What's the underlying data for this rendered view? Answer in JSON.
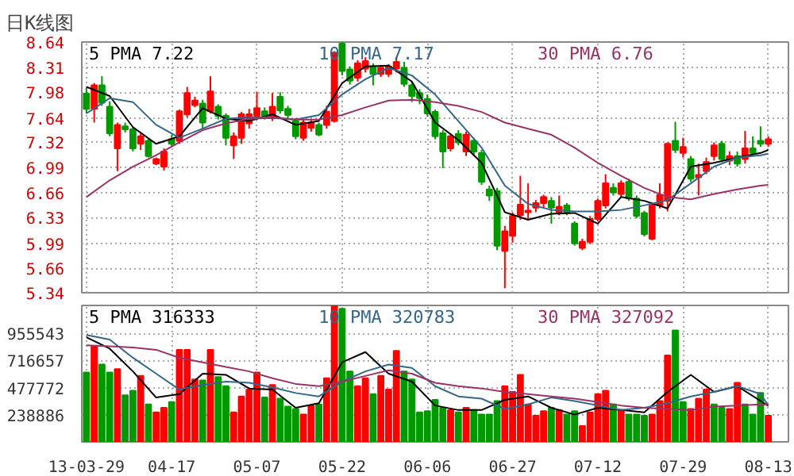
{
  "chart_data": [
    {
      "type": "candlestick",
      "title": "日K线图",
      "categories": [
        null,
        null,
        null,
        null,
        null,
        null,
        null,
        null,
        null,
        null,
        null,
        null,
        null,
        null,
        null,
        null,
        null,
        null,
        null,
        null,
        null,
        null,
        null,
        null,
        null,
        null,
        null,
        null,
        null,
        null,
        null,
        null,
        null,
        null,
        null,
        null,
        null,
        null,
        null,
        null,
        null,
        null,
        null,
        null,
        null,
        null,
        null,
        null,
        null,
        null,
        null,
        null,
        null,
        null,
        null,
        null,
        null,
        null,
        null,
        null,
        null,
        null,
        null,
        null,
        null,
        null,
        null,
        null,
        null,
        null,
        null,
        null,
        null,
        null,
        null,
        null,
        null,
        null,
        null,
        null,
        null,
        null,
        null,
        null,
        null,
        null,
        null,
        null,
        null
      ],
      "ohlc": [
        [
          7.96,
          8.04,
          7.7,
          7.76
        ],
        [
          7.76,
          8.1,
          7.58,
          8.07
        ],
        [
          8.07,
          8.19,
          7.8,
          7.84
        ],
        [
          7.79,
          7.86,
          7.4,
          7.44
        ],
        [
          7.24,
          7.58,
          6.94,
          7.55
        ],
        [
          7.53,
          7.58,
          7.45,
          7.49
        ],
        [
          7.49,
          7.52,
          7.2,
          7.24
        ],
        [
          7.3,
          7.45,
          7.22,
          7.4
        ],
        [
          7.34,
          7.37,
          7.12,
          7.14
        ],
        [
          7.04,
          7.12,
          7.02,
          7.1
        ],
        [
          7.0,
          7.24,
          6.95,
          7.2
        ],
        [
          7.36,
          7.42,
          7.26,
          7.3
        ],
        [
          7.34,
          7.75,
          7.3,
          7.73
        ],
        [
          7.69,
          8.05,
          7.65,
          7.97
        ],
        [
          7.81,
          7.92,
          7.78,
          7.87
        ],
        [
          7.83,
          7.88,
          7.5,
          7.58
        ],
        [
          7.73,
          8.19,
          7.7,
          7.99
        ],
        [
          7.79,
          7.82,
          7.62,
          7.67
        ],
        [
          7.67,
          7.7,
          7.28,
          7.38
        ],
        [
          7.28,
          7.45,
          7.1,
          7.4
        ],
        [
          7.38,
          7.72,
          7.3,
          7.69
        ],
        [
          7.57,
          7.76,
          7.5,
          7.69
        ],
        [
          7.67,
          7.98,
          7.62,
          7.77
        ],
        [
          7.73,
          7.78,
          7.62,
          7.67
        ],
        [
          7.65,
          7.97,
          7.6,
          7.79
        ],
        [
          7.92,
          7.98,
          7.7,
          7.74
        ],
        [
          7.76,
          7.8,
          7.62,
          7.68
        ],
        [
          7.6,
          7.64,
          7.36,
          7.4
        ],
        [
          7.38,
          7.62,
          7.34,
          7.58
        ],
        [
          7.51,
          7.62,
          7.46,
          7.58
        ],
        [
          7.55,
          7.58,
          7.4,
          7.42
        ],
        [
          7.55,
          7.8,
          7.5,
          7.72
        ],
        [
          7.6,
          8.52,
          7.58,
          8.5
        ],
        [
          8.62,
          8.64,
          8.2,
          8.26
        ],
        [
          8.28,
          8.32,
          8.08,
          8.13
        ],
        [
          8.17,
          8.4,
          8.12,
          8.36
        ],
        [
          8.29,
          8.44,
          8.24,
          8.39
        ],
        [
          8.32,
          8.36,
          8.07,
          8.22
        ],
        [
          8.22,
          8.34,
          8.18,
          8.3
        ],
        [
          8.22,
          8.35,
          8.18,
          8.32
        ],
        [
          8.29,
          8.44,
          8.24,
          8.38
        ],
        [
          8.3,
          8.38,
          8.05,
          8.09
        ],
        [
          8.07,
          8.12,
          7.85,
          7.93
        ],
        [
          7.97,
          8.02,
          7.82,
          7.9
        ],
        [
          7.89,
          7.95,
          7.66,
          7.7
        ],
        [
          7.72,
          7.75,
          7.36,
          7.4
        ],
        [
          7.44,
          7.48,
          6.98,
          7.2
        ],
        [
          7.24,
          7.44,
          7.2,
          7.4
        ],
        [
          7.43,
          7.48,
          7.28,
          7.32
        ],
        [
          7.2,
          7.46,
          7.14,
          7.42
        ],
        [
          7.34,
          7.38,
          7.16,
          7.2
        ],
        [
          7.18,
          7.22,
          6.76,
          6.8
        ],
        [
          6.7,
          6.75,
          6.55,
          6.62
        ],
        [
          6.68,
          6.72,
          5.9,
          5.96
        ],
        [
          5.89,
          6.22,
          5.4,
          6.15
        ],
        [
          6.09,
          6.4,
          6.0,
          6.35
        ],
        [
          6.36,
          6.88,
          6.3,
          6.5
        ],
        [
          6.4,
          6.78,
          6.29,
          6.42
        ],
        [
          6.46,
          6.56,
          6.4,
          6.52
        ],
        [
          6.52,
          6.63,
          6.45,
          6.6
        ],
        [
          6.55,
          6.6,
          6.25,
          6.46
        ],
        [
          6.4,
          6.62,
          6.36,
          6.47
        ],
        [
          6.49,
          6.52,
          6.36,
          6.4
        ],
        [
          6.25,
          6.28,
          5.96,
          5.99
        ],
        [
          5.93,
          6.05,
          5.9,
          6.01
        ],
        [
          6.01,
          6.35,
          5.98,
          6.31
        ],
        [
          6.31,
          6.58,
          6.28,
          6.55
        ],
        [
          6.49,
          6.9,
          6.45,
          6.78
        ],
        [
          6.72,
          6.78,
          6.62,
          6.66
        ],
        [
          6.64,
          6.82,
          6.6,
          6.78
        ],
        [
          6.8,
          6.84,
          6.55,
          6.58
        ],
        [
          6.58,
          6.62,
          6.32,
          6.35
        ],
        [
          6.39,
          6.42,
          6.08,
          6.11
        ],
        [
          6.05,
          6.52,
          6.03,
          6.49
        ],
        [
          6.49,
          6.78,
          6.45,
          6.63
        ],
        [
          6.55,
          7.32,
          6.41,
          7.3
        ],
        [
          7.34,
          7.59,
          7.18,
          7.22
        ],
        [
          7.18,
          7.38,
          7.12,
          7.26
        ],
        [
          7.1,
          7.14,
          6.8,
          6.84
        ],
        [
          6.86,
          7.04,
          6.62,
          6.89
        ],
        [
          6.94,
          7.12,
          6.9,
          7.06
        ],
        [
          7.14,
          7.32,
          7.08,
          7.28
        ],
        [
          7.3,
          7.34,
          7.06,
          7.1
        ],
        [
          7.08,
          7.2,
          7.02,
          7.14
        ],
        [
          7.14,
          7.2,
          7.0,
          7.04
        ],
        [
          7.1,
          7.47,
          7.04,
          7.24
        ],
        [
          7.24,
          7.4,
          7.14,
          7.18
        ],
        [
          7.34,
          7.53,
          7.26,
          7.3
        ],
        [
          7.3,
          7.4,
          7.26,
          7.36
        ]
      ],
      "series": [
        {
          "type": "line",
          "name": "5 PMA 7.22",
          "color": "#000000",
          "values": [
            8.05,
            null,
            null,
            7.93,
            null,
            null,
            7.52,
            null,
            null,
            7.3,
            null,
            null,
            7.4,
            null,
            null,
            7.77,
            null,
            null,
            7.63,
            null,
            null,
            7.6,
            null,
            null,
            7.69,
            null,
            null,
            7.55,
            null,
            null,
            7.6,
            null,
            null,
            8.1,
            null,
            null,
            8.32,
            null,
            null,
            8.33,
            null,
            null,
            8.12,
            null,
            null,
            7.58,
            null,
            null,
            7.35,
            null,
            null,
            7.05,
            null,
            null,
            6.4,
            null,
            null,
            6.3,
            null,
            null,
            6.38,
            null,
            null,
            6.39,
            null,
            null,
            6.25,
            null,
            null,
            6.6,
            null,
            null,
            6.55,
            null,
            null,
            6.45,
            null,
            null,
            7.0,
            null,
            null,
            7.05,
            null,
            null,
            7.12,
            null,
            null,
            7.18,
            7.22
          ]
        },
        {
          "type": "line",
          "name": "10 PMA 7.17",
          "color": "#336688",
          "values": [
            7.7,
            null,
            null,
            7.9,
            null,
            null,
            7.85,
            null,
            null,
            7.55,
            null,
            null,
            7.38,
            null,
            null,
            7.5,
            null,
            null,
            7.63,
            null,
            null,
            7.65,
            null,
            null,
            7.65,
            null,
            null,
            7.62,
            null,
            null,
            7.68,
            null,
            null,
            7.95,
            null,
            null,
            8.15,
            null,
            null,
            8.3,
            null,
            null,
            8.2,
            null,
            null,
            7.95,
            null,
            null,
            7.6,
            null,
            null,
            7.25,
            null,
            null,
            6.75,
            null,
            null,
            6.51,
            null,
            null,
            6.43,
            null,
            null,
            6.41,
            null,
            null,
            6.41,
            null,
            null,
            6.43,
            null,
            null,
            6.49,
            null,
            null,
            6.56,
            null,
            null,
            6.78,
            null,
            null,
            7.0,
            null,
            null,
            7.12,
            null,
            null,
            7.15,
            7.17
          ]
        },
        {
          "type": "line",
          "name": "30 PMA 6.76",
          "color": "#993366",
          "values": [
            6.6,
            null,
            null,
            6.82,
            null,
            null,
            7.0,
            null,
            null,
            7.15,
            null,
            null,
            7.32,
            null,
            null,
            7.48,
            null,
            null,
            7.57,
            null,
            null,
            7.63,
            null,
            null,
            7.64,
            null,
            null,
            7.62,
            null,
            null,
            7.62,
            null,
            null,
            7.68,
            null,
            null,
            7.78,
            null,
            null,
            7.87,
            null,
            null,
            7.88,
            null,
            null,
            7.85,
            null,
            null,
            7.8,
            null,
            null,
            7.72,
            null,
            null,
            7.58,
            null,
            null,
            7.5,
            null,
            null,
            7.42,
            null,
            null,
            7.25,
            null,
            null,
            7.05,
            null,
            null,
            6.88,
            null,
            null,
            6.72,
            null,
            null,
            6.6,
            null,
            null,
            6.57,
            null,
            null,
            6.64,
            null,
            null,
            6.7,
            null,
            null,
            6.75,
            6.76
          ]
        }
      ],
      "ylim": [
        5.34,
        8.64
      ],
      "yticks": [
        5.34,
        5.66,
        5.99,
        6.33,
        6.66,
        6.99,
        7.32,
        7.64,
        7.98,
        8.31,
        8.64
      ],
      "grid": true,
      "tick_labels": "y"
    },
    {
      "type": "bar",
      "categories": [
        "13-03-29",
        null,
        null,
        null,
        null,
        null,
        null,
        null,
        null,
        null,
        null,
        "04-17",
        null,
        null,
        null,
        null,
        null,
        null,
        null,
        null,
        null,
        null,
        "05-07",
        null,
        null,
        null,
        null,
        null,
        null,
        null,
        null,
        null,
        null,
        "05-22",
        null,
        null,
        null,
        null,
        null,
        null,
        null,
        null,
        null,
        null,
        "06-06",
        null,
        null,
        null,
        null,
        null,
        null,
        null,
        null,
        null,
        null,
        "06-27",
        null,
        null,
        null,
        null,
        null,
        null,
        null,
        null,
        null,
        null,
        "07-12",
        null,
        null,
        null,
        null,
        null,
        null,
        null,
        null,
        null,
        null,
        "07-29",
        null,
        null,
        null,
        null,
        null,
        null,
        null,
        null,
        null,
        null,
        "08-13"
      ],
      "values": [
        610000,
        840000,
        680000,
        610000,
        640000,
        410000,
        450000,
        580000,
        330000,
        260000,
        300000,
        350000,
        810000,
        810000,
        550000,
        540000,
        810000,
        570000,
        490000,
        260000,
        400000,
        460000,
        610000,
        390000,
        500000,
        380000,
        310000,
        290000,
        240000,
        320000,
        330000,
        560000,
        1200000,
        1170000,
        620000,
        490000,
        560000,
        420000,
        580000,
        460000,
        800000,
        620000,
        550000,
        260000,
        270000,
        370000,
        300000,
        280000,
        260000,
        300000,
        280000,
        240000,
        240000,
        360000,
        490000,
        440000,
        590000,
        330000,
        230000,
        270000,
        300000,
        280000,
        240000,
        270000,
        140000,
        260000,
        420000,
        450000,
        330000,
        280000,
        240000,
        240000,
        230000,
        240000,
        360000,
        760000,
        980000,
        350000,
        290000,
        380000,
        460000,
        330000,
        300000,
        290000,
        520000,
        330000,
        240000,
        430000,
        230000
      ],
      "colors": [
        "#009900",
        "#ff0000",
        "#009900",
        "#009900",
        "#ff0000",
        "#009900",
        "#009900",
        "#ff0000",
        "#009900",
        "#ff0000",
        "#ff0000",
        "#009900",
        "#ff0000",
        "#ff0000",
        "#ff0000",
        "#009900",
        "#ff0000",
        "#009900",
        "#009900",
        "#ff0000",
        "#ff0000",
        "#ff0000",
        "#ff0000",
        "#009900",
        "#ff0000",
        "#009900",
        "#009900",
        "#009900",
        "#ff0000",
        "#ff0000",
        "#009900",
        "#ff0000",
        "#ff0000",
        "#009900",
        "#009900",
        "#ff0000",
        "#ff0000",
        "#009900",
        "#ff0000",
        "#ff0000",
        "#ff0000",
        "#009900",
        "#009900",
        "#009900",
        "#009900",
        "#009900",
        "#009900",
        "#ff0000",
        "#009900",
        "#ff0000",
        "#009900",
        "#009900",
        "#009900",
        "#009900",
        "#ff0000",
        "#ff0000",
        "#ff0000",
        "#ff0000",
        "#ff0000",
        "#ff0000",
        "#009900",
        "#ff0000",
        "#009900",
        "#009900",
        "#ff0000",
        "#ff0000",
        "#ff0000",
        "#ff0000",
        "#009900",
        "#ff0000",
        "#009900",
        "#009900",
        "#009900",
        "#ff0000",
        "#ff0000",
        "#ff0000",
        "#009900",
        "#009900",
        "#ff0000",
        "#ff0000",
        "#ff0000",
        "#009900",
        "#009900",
        "#ff0000",
        "#ff0000",
        "#009900",
        "#009900",
        "#009900",
        "#ff0000"
      ],
      "series": [
        {
          "type": "line",
          "name": "5 PMA 316333",
          "color": "#000000",
          "values": [
            920000,
            null,
            null,
            820000,
            null,
            null,
            620000,
            null,
            null,
            390000,
            null,
            null,
            420000,
            null,
            null,
            600000,
            null,
            null,
            590000,
            null,
            null,
            470000,
            null,
            null,
            460000,
            null,
            null,
            300000,
            null,
            null,
            340000,
            null,
            null,
            700000,
            null,
            null,
            790000,
            null,
            null,
            600000,
            null,
            null,
            530000,
            null,
            null,
            320000,
            null,
            null,
            280000,
            null,
            null,
            280000,
            null,
            null,
            370000,
            null,
            null,
            400000,
            null,
            null,
            300000,
            null,
            null,
            240000,
            null,
            null,
            300000,
            null,
            null,
            280000,
            null,
            null,
            260000,
            null,
            null,
            440000,
            null,
            null,
            590000,
            null,
            null,
            440000,
            null,
            null,
            490000,
            null,
            null,
            360000,
            316333
          ]
        },
        {
          "type": "line",
          "name": "10 PMA 320783",
          "color": "#336688",
          "values": [
            940000,
            null,
            null,
            900000,
            null,
            null,
            740000,
            null,
            null,
            600000,
            null,
            null,
            460000,
            null,
            null,
            500000,
            null,
            null,
            530000,
            null,
            null,
            520000,
            null,
            null,
            480000,
            null,
            null,
            430000,
            null,
            null,
            400000,
            null,
            null,
            530000,
            null,
            null,
            620000,
            null,
            null,
            680000,
            null,
            null,
            650000,
            null,
            null,
            490000,
            null,
            null,
            400000,
            null,
            null,
            380000,
            null,
            null,
            290000,
            null,
            null,
            330000,
            null,
            null,
            390000,
            null,
            null,
            360000,
            null,
            null,
            320000,
            null,
            null,
            280000,
            null,
            null,
            300000,
            null,
            null,
            340000,
            null,
            null,
            400000,
            null,
            null,
            440000,
            null,
            null,
            490000,
            null,
            null,
            420000,
            320783
          ]
        },
        {
          "type": "line",
          "name": "30 PMA 327092",
          "color": "#993366",
          "values": [
            850000,
            null,
            null,
            840000,
            null,
            null,
            830000,
            null,
            null,
            810000,
            null,
            null,
            740000,
            null,
            null,
            700000,
            null,
            null,
            660000,
            null,
            null,
            620000,
            null,
            null,
            560000,
            null,
            null,
            510000,
            null,
            null,
            490000,
            null,
            null,
            530000,
            null,
            null,
            580000,
            null,
            null,
            630000,
            null,
            null,
            600000,
            null,
            null,
            520000,
            null,
            null,
            490000,
            null,
            null,
            470000,
            null,
            null,
            440000,
            null,
            null,
            420000,
            null,
            null,
            400000,
            null,
            null,
            380000,
            null,
            null,
            350000,
            null,
            null,
            320000,
            null,
            null,
            300000,
            null,
            null,
            290000,
            null,
            null,
            280000,
            null,
            null,
            310000,
            null,
            null,
            320000,
            null,
            null,
            330000,
            327092
          ]
        }
      ],
      "ylim": [
        0,
        1200000
      ],
      "yticks": [
        238886,
        477772,
        716657,
        955543
      ],
      "grid": true
    }
  ]
}
